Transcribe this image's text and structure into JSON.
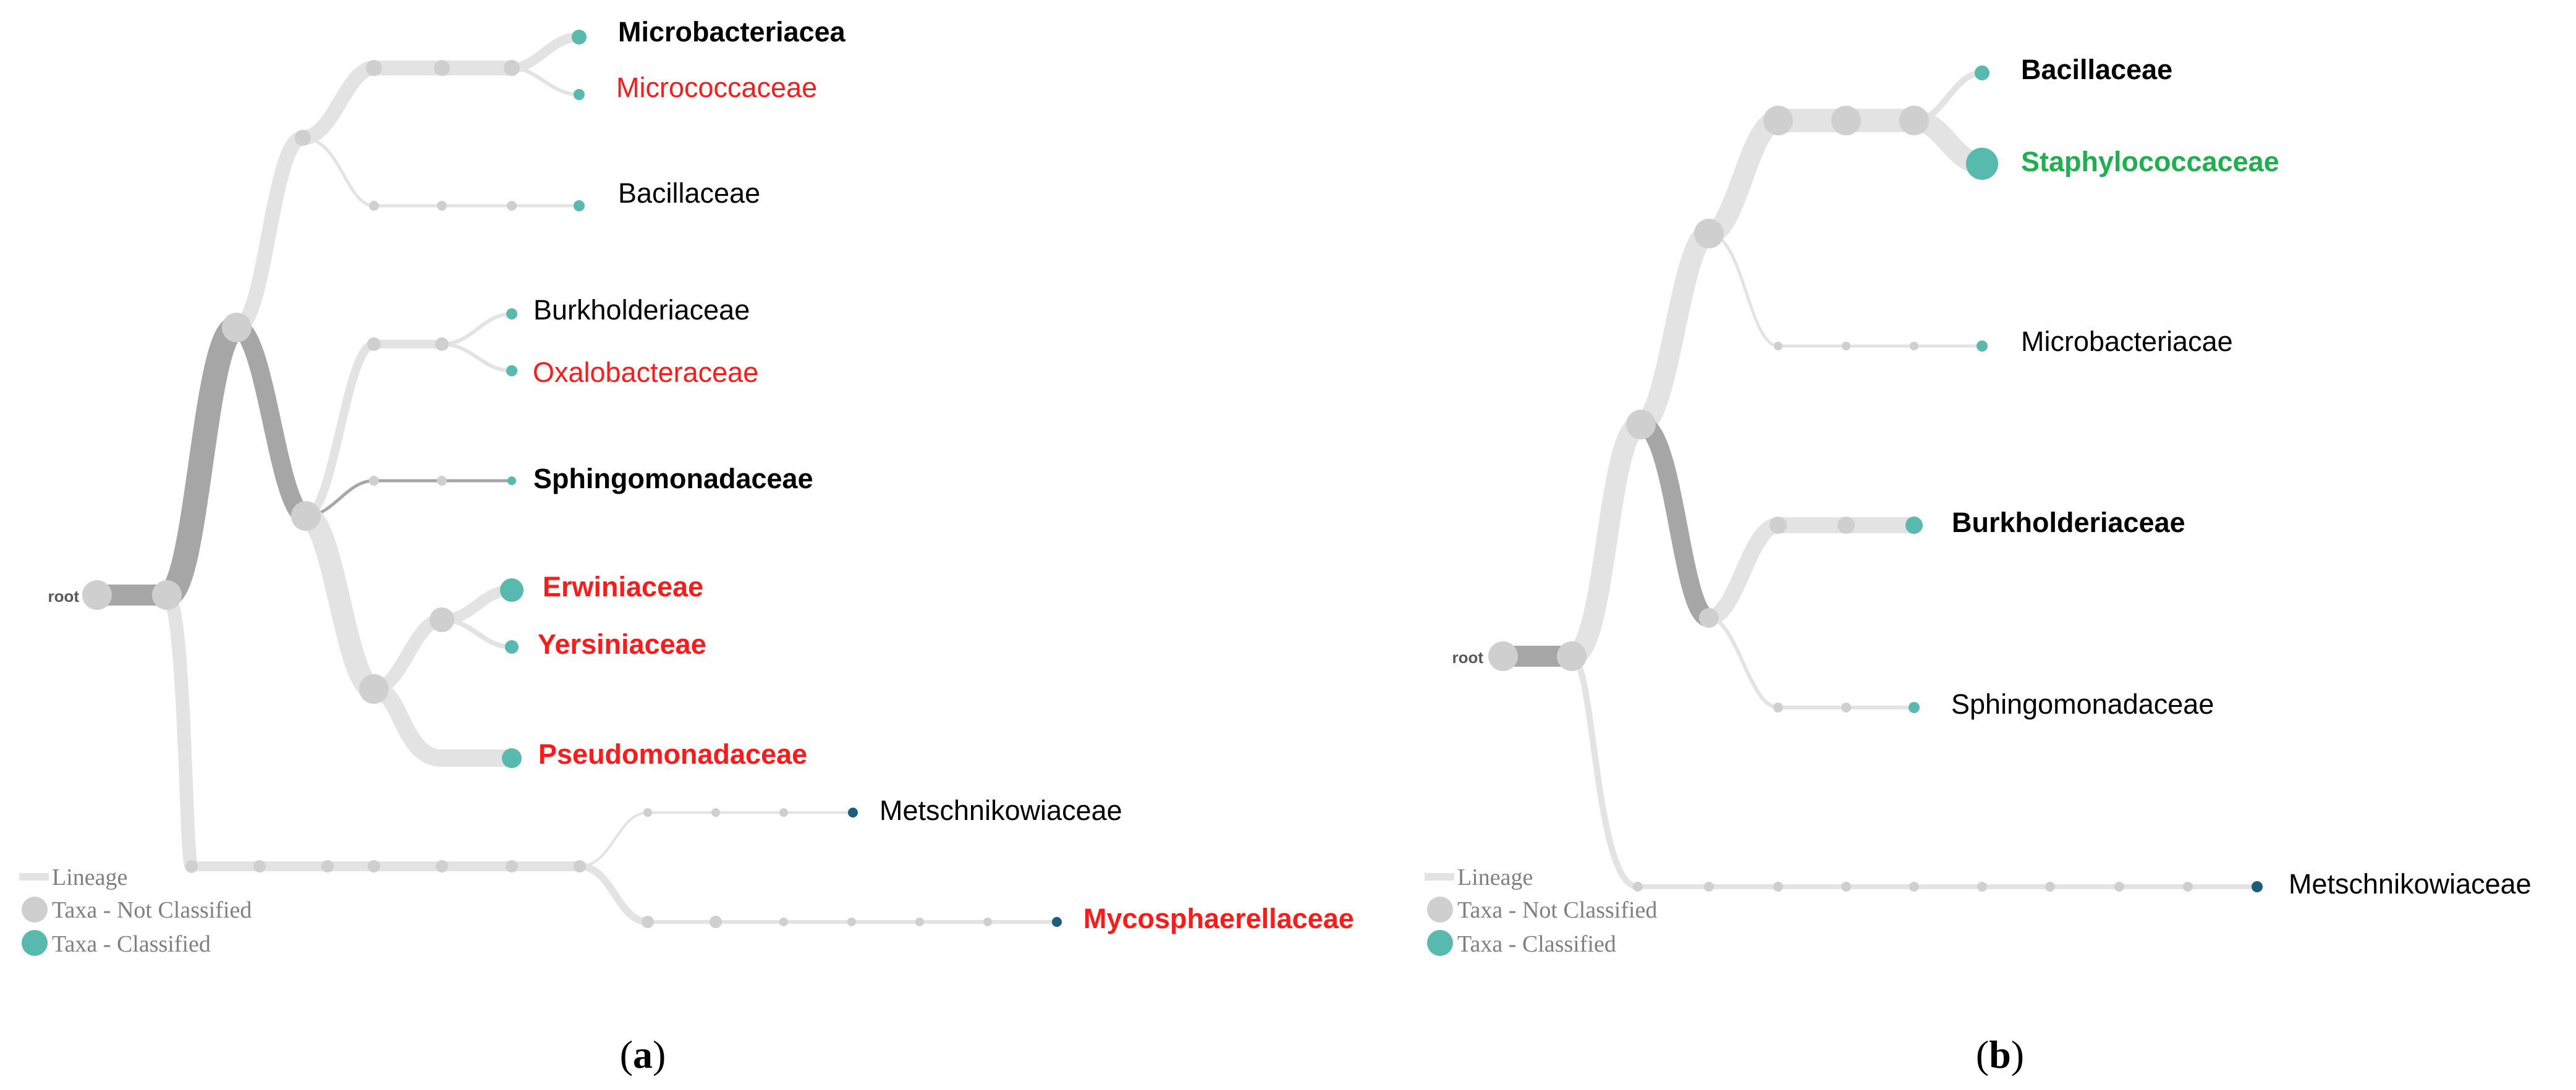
{
  "colors": {
    "edge_light": "#e3e3e3",
    "edge_dark": "#a6a6a6",
    "node_unclassified": "#cfcfcf",
    "node_classified": "#58b9ae",
    "node_dark_classified": "#1b5d7d",
    "label_black": "#000000",
    "label_red": "#ff1a1a",
    "label_green": "#1db14d",
    "legend_text": "#808080"
  },
  "panel_a": {
    "caption_open": "(",
    "caption_letter": "a",
    "caption_close": ")",
    "root_label": "root",
    "taxa": [
      {
        "id": "microbacteriacea",
        "label": "Microbacteriacea",
        "color": "black",
        "bold": true
      },
      {
        "id": "micrococcaceae",
        "label": "Micrococcaceae",
        "color": "red",
        "bold": false
      },
      {
        "id": "bacillaceae",
        "label": "Bacillaceae",
        "color": "black",
        "bold": false
      },
      {
        "id": "burkholderiaceae",
        "label": "Burkholderiaceae",
        "color": "black",
        "bold": false
      },
      {
        "id": "oxalobacteraceae",
        "label": "Oxalobacteraceae",
        "color": "red",
        "bold": false
      },
      {
        "id": "sphingomonadaceae",
        "label": "Sphingomonadaceae",
        "color": "black",
        "bold": true
      },
      {
        "id": "erwiniaceae",
        "label": "Erwiniaceae",
        "color": "red",
        "bold": true
      },
      {
        "id": "yersiniaceae",
        "label": "Yersiniaceae",
        "color": "red",
        "bold": true
      },
      {
        "id": "pseudomonadaceae",
        "label": "Pseudomonadaceae",
        "color": "red",
        "bold": true
      },
      {
        "id": "metschnikowiaceae",
        "label": "Metschnikowiaceae",
        "color": "black",
        "bold": false
      },
      {
        "id": "mycosphaerellaceae",
        "label": "Mycosphaerellaceae",
        "color": "red",
        "bold": true
      }
    ],
    "legend": {
      "lineage": "Lineage",
      "not_classified": "Taxa - Not Classified",
      "classified": "Taxa - Classified"
    }
  },
  "panel_b": {
    "caption_open": "(",
    "caption_letter": "b",
    "caption_close": ")",
    "root_label": "root",
    "taxa": [
      {
        "id": "bacillaceae",
        "label": "Bacillaceae",
        "color": "black",
        "bold": true
      },
      {
        "id": "staphylococcaceae",
        "label": "Staphylococcaceae",
        "color": "green",
        "bold": true
      },
      {
        "id": "microbacteriacae",
        "label": "Microbacteriacae",
        "color": "black",
        "bold": false
      },
      {
        "id": "burkholderiaceae",
        "label": "Burkholderiaceae",
        "color": "black",
        "bold": true
      },
      {
        "id": "sphingomonadaceae",
        "label": "Sphingomonadaceae",
        "color": "black",
        "bold": false
      },
      {
        "id": "metschnikowiaceae",
        "label": "Metschnikowiaceae",
        "color": "black",
        "bold": false
      }
    ],
    "legend": {
      "lineage": "Lineage",
      "not_classified": "Taxa - Not Classified",
      "classified": "Taxa - Classified"
    }
  }
}
